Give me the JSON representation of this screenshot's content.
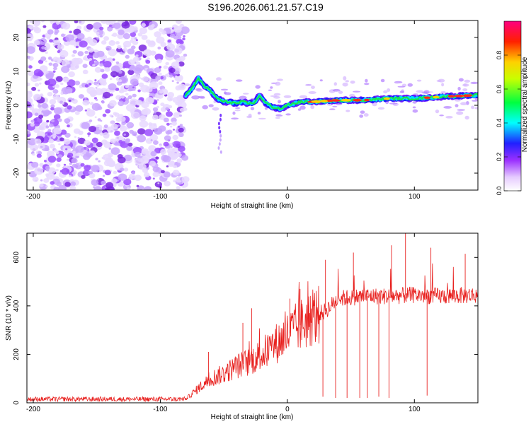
{
  "title": "S196.2026.061.21.57.C19",
  "colors": {
    "spec_purple": "#7a28e0",
    "snr_line": "#e8201e"
  },
  "chart_data": [
    {
      "type": "heatmap",
      "panel": "spectrogram",
      "xlabel": "Height of straight line (km)",
      "ylabel": "Frequency (Hz)",
      "xlim": [
        -205,
        150
      ],
      "ylim": [
        -25,
        25
      ],
      "xticks": [
        -200,
        -100,
        0,
        100
      ],
      "yticks": [
        -20,
        -10,
        0,
        10,
        20
      ],
      "colorbar": {
        "label": "Normalized spectral amplitude",
        "range": [
          0.0,
          1.0
        ],
        "ticks": [
          "0.0",
          "0.2",
          "0.4",
          "0.6",
          "0.8"
        ]
      },
      "ridge": {
        "description": "dominant frequency ridge",
        "x": [
          -80,
          -75,
          -70,
          -66,
          -60,
          -55,
          -50,
          -45,
          -40,
          -35,
          -30,
          -25,
          -22,
          -18,
          -12,
          -5,
          0,
          10,
          20,
          40,
          60,
          80,
          100,
          120,
          150
        ],
        "y": [
          3,
          5,
          8,
          6,
          4,
          2,
          1,
          1,
          0.5,
          1,
          0.5,
          1,
          3,
          1,
          -0.5,
          -1,
          0,
          1,
          1,
          1.5,
          1.5,
          2,
          2,
          2.5,
          3
        ]
      },
      "noise_region_x": [
        -205,
        -80
      ]
    },
    {
      "type": "line",
      "panel": "snr",
      "xlabel": "Height of straight line (km)",
      "ylabel": "SNR (10 * v/v)",
      "xlim": [
        -205,
        150
      ],
      "ylim": [
        0,
        700
      ],
      "xticks": [
        -200,
        -100,
        0,
        100
      ],
      "yticks": [
        0,
        200,
        400,
        600
      ],
      "envelope": {
        "x": [
          -205,
          -80,
          -70,
          -60,
          -50,
          -40,
          -30,
          -20,
          -10,
          0,
          10,
          20,
          30,
          40,
          60,
          80,
          100,
          120,
          150
        ],
        "y": [
          15,
          15,
          60,
          100,
          120,
          150,
          170,
          200,
          240,
          280,
          320,
          350,
          380,
          430,
          440,
          440,
          445,
          440,
          445
        ]
      },
      "spikes": [
        {
          "x": -62,
          "y": 210
        },
        {
          "x": -35,
          "y": 330
        },
        {
          "x": -28,
          "y": 390
        },
        {
          "x": 2,
          "y": 430
        },
        {
          "x": 10,
          "y": 470
        },
        {
          "x": 30,
          "y": 590
        },
        {
          "x": 52,
          "y": 620
        },
        {
          "x": 82,
          "y": 650
        },
        {
          "x": 93,
          "y": 700
        },
        {
          "x": 113,
          "y": 640
        },
        {
          "x": 140,
          "y": 615
        }
      ],
      "dips": [
        {
          "x": 28,
          "y": 25
        },
        {
          "x": 38,
          "y": 20
        },
        {
          "x": 47,
          "y": 20
        },
        {
          "x": 57,
          "y": 20
        },
        {
          "x": 63,
          "y": 20
        },
        {
          "x": 72,
          "y": 25
        },
        {
          "x": 80,
          "y": 20
        },
        {
          "x": 110,
          "y": 30
        }
      ]
    }
  ]
}
